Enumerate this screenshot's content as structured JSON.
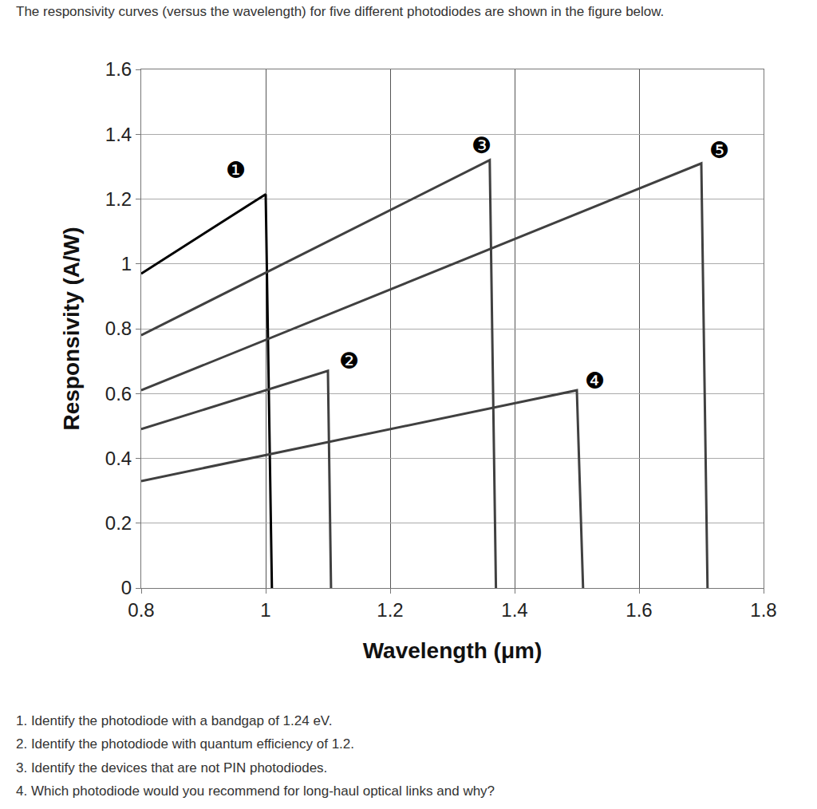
{
  "chart_data": {
    "type": "line",
    "title": "The responsivity curves (versus the wavelength) for five different photodiodes are shown in the figure below.",
    "x_label": "Wavelength (μm)",
    "y_label": "Responsivity (A/W)",
    "series": [
      {
        "name": "❶",
        "color": "#000000",
        "x": [
          0.8,
          1.0,
          1.01
        ],
        "values": [
          0.97,
          1.215,
          0
        ]
      },
      {
        "name": "❷",
        "color": "#404040",
        "x": [
          0.8,
          1.1,
          1.105
        ],
        "values": [
          0.49,
          0.67,
          0
        ]
      },
      {
        "name": "❸",
        "color": "#404040",
        "x": [
          0.8,
          1.36,
          1.37
        ],
        "values": [
          0.78,
          1.32,
          0
        ]
      },
      {
        "name": "❹",
        "color": "#404040",
        "x": [
          0.8,
          1.5,
          1.51
        ],
        "values": [
          0.33,
          0.61,
          0
        ]
      },
      {
        "name": "❺",
        "color": "#404040",
        "x": [
          0.8,
          1.7,
          1.71
        ],
        "values": [
          0.61,
          1.31,
          0
        ]
      }
    ],
    "xlim": [
      0.8,
      1.8
    ],
    "xticks": [
      0.8,
      1,
      1.2,
      1.4,
      1.6,
      1.8
    ],
    "ylim": [
      0,
      1.6
    ],
    "yticks": [
      0,
      0.2,
      0.4,
      0.6,
      0.8,
      1,
      1.2,
      1.4,
      1.6
    ],
    "grid": true,
    "annotations": [
      "1. Identify the photodiode with a bandgap of 1.24 eV.",
      "2. Identify the photodiode with quantum efficiency of 1.2.",
      "3. Identify the devices that are not PIN photodiodes.",
      "4. Which photodiode would you recommend for long-haul optical links and why?"
    ]
  }
}
